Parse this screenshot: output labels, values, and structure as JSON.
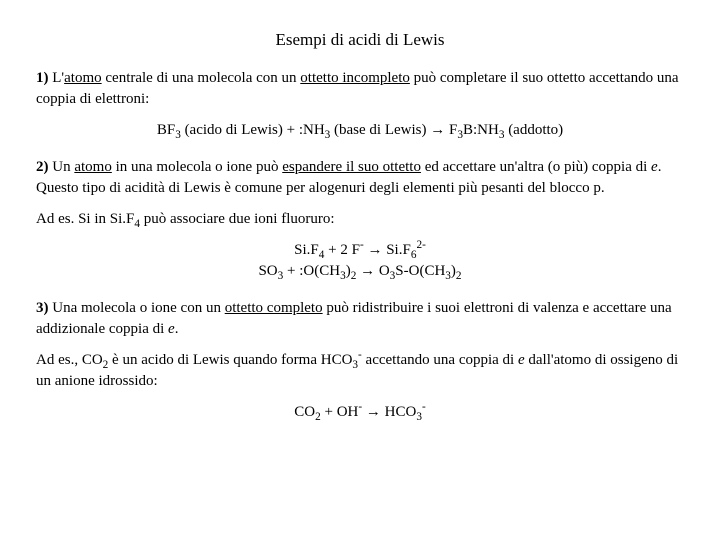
{
  "title": "Esempi di acidi di Lewis",
  "p1": {
    "lead": "1)",
    "t1": " L'",
    "u1": "atomo",
    "t2": " centrale di una molecola con un ",
    "u2": "ottetto incompleto",
    "t3": " può completare il suo ottetto accettando una coppia di elettroni:"
  },
  "eq1": {
    "a": "BF",
    "a_sub": "3",
    "a_tail": " (acido di Lewis)   +    :NH",
    "b_sub": "3",
    "b_tail": " (base di Lewis) → F",
    "c_sub": "3",
    "c_tail": "B:NH",
    "d_sub": "3",
    "d_tail": " (addotto)"
  },
  "p2": {
    "lead": "2)",
    "t1": " Un ",
    "u1": "atomo",
    "t2": " in una molecola o ione può ",
    "u2": "espandere il suo ottetto",
    "t3": " ed accettare un'altra (o più) coppia di ",
    "it1": "e",
    "t4": ". Questo tipo di acidità di Lewis è comune per alogenuri degli elementi più pesanti del blocco p."
  },
  "p3": {
    "t1": "Ad es. Si in Si.F",
    "s1": "4",
    "t2": " può associare due ioni fluoruro:"
  },
  "eq2a": {
    "a": "Si.F",
    "a_sub": "4",
    "b": " +  2 F",
    "b_sup": "-",
    "c": " → Si.F",
    "c_sub": "6",
    "c_sup": "2-"
  },
  "eq2b": {
    "a": "SO",
    "a_sub": "3",
    "b": " +   :O(CH",
    "b_sub": "3",
    "c": ")",
    "c_sub": "2",
    "d": " → O",
    "d_sub": "3",
    "e": "S-O(CH",
    "e_sub": "3",
    "f": ")",
    "f_sub": "2"
  },
  "p4": {
    "lead": "3)",
    "t1": " Una molecola o ione con un ",
    "u1": "ottetto completo",
    "t2": " può ridistribuire i suoi elettroni di valenza e accettare una addizionale coppia di ",
    "it1": "e",
    "t3": "."
  },
  "p5": {
    "t1": " Ad es., CO",
    "s1": "2",
    "t2": " è un acido di Lewis quando forma HCO",
    "s2": "3",
    "sup1": "-",
    "t3": " accettando una coppia di ",
    "it1": "e",
    "t4": " dall'atomo di ossigeno di un anione idrossido:"
  },
  "eq3": {
    "a": "CO",
    "a_sub": "2",
    "b": " + OH",
    "b_sup": "-",
    "c": "  → HCO",
    "c_sub": "3",
    "c_sup": "-"
  }
}
